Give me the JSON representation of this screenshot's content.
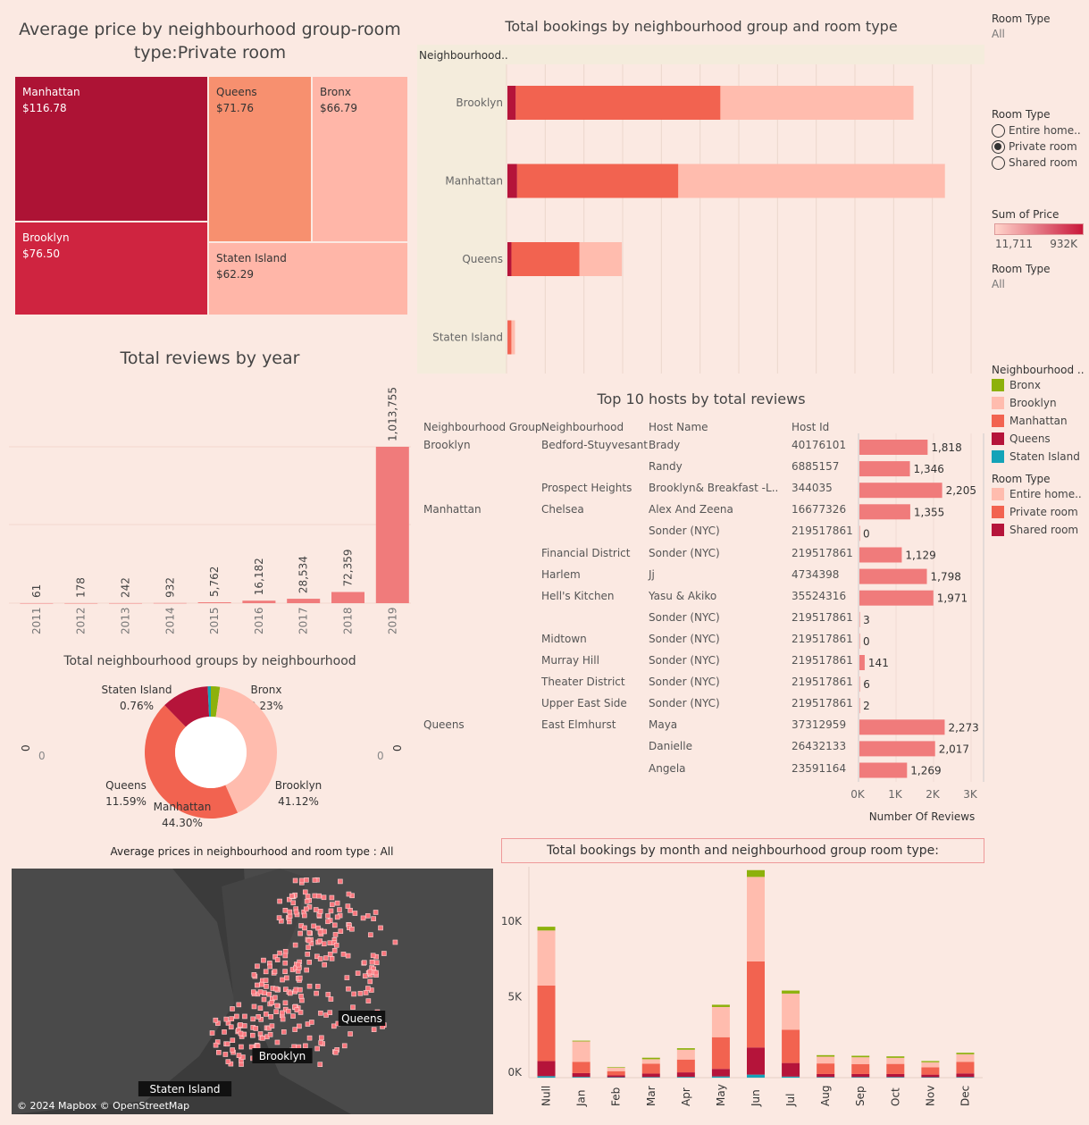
{
  "treemap": {
    "title": "Average price by  neighbourhood group-room type:Private room",
    "cells": [
      {
        "name": "Manhattan",
        "value": "$116.78",
        "color": "#ad1335",
        "text": "#ffffff"
      },
      {
        "name": "Brooklyn",
        "value": "$76.50",
        "color": "#cf2440",
        "text": "#ffffff"
      },
      {
        "name": "Queens",
        "value": "$71.76",
        "color": "#f7906f",
        "text": "#333333"
      },
      {
        "name": "Bronx",
        "value": "$66.79",
        "color": "#ffb6a8",
        "text": "#333333"
      },
      {
        "name": "Staten Island",
        "value": "$62.29",
        "color": "#ffb6a8",
        "text": "#333333"
      }
    ]
  },
  "bookings": {
    "title": "Total bookings by neighbourhood group and room type",
    "header": "Neighbourhood..",
    "rows": [
      {
        "name": "Brooklyn",
        "shared": 413,
        "private": 10132,
        "entire": 9559
      },
      {
        "name": "Manhattan",
        "shared": 480,
        "private": 7982,
        "entire": 13199
      },
      {
        "name": "Queens",
        "shared": 198,
        "private": 3372,
        "entire": 2096
      },
      {
        "name": "Staten Island",
        "shared": 9,
        "private": 188,
        "entire": 176
      }
    ],
    "xmax": 23000,
    "colors": {
      "shared": "#b5143a",
      "private": "#f26350",
      "entire": "#ffbcae"
    }
  },
  "filters": {
    "room_type_label_1": "Room Type",
    "room_type_value_1": "All",
    "room_type_label_2": "Room Type",
    "options": [
      {
        "label": "Entire home..",
        "selected": false
      },
      {
        "label": "Private room",
        "selected": true
      },
      {
        "label": "Shared room",
        "selected": false
      }
    ],
    "sum_price_label": "Sum of Price",
    "sum_price_min": "11,711",
    "sum_price_max": "932K",
    "room_type_label_3": "Room Type",
    "room_type_value_3": "All"
  },
  "legend_ng": {
    "title": "Neighbourhood ..",
    "items": [
      {
        "label": "Bronx",
        "color": "#8db10c"
      },
      {
        "label": "Brooklyn",
        "color": "#ffbcae"
      },
      {
        "label": "Manhattan",
        "color": "#f26350"
      },
      {
        "label": "Queens",
        "color": "#b5143a"
      },
      {
        "label": "Staten Island",
        "color": "#14a3b8"
      }
    ]
  },
  "legend_rt": {
    "title": "Room Type",
    "items": [
      {
        "label": "Entire home..",
        "color": "#ffbcae"
      },
      {
        "label": "Private room",
        "color": "#f26350"
      },
      {
        "label": "Shared room",
        "color": "#b5143a"
      }
    ]
  },
  "reviews_year": {
    "title": "Total reviews by year",
    "years": [
      "2011",
      "2012",
      "2013",
      "2014",
      "2015",
      "2016",
      "2017",
      "2018",
      "2019"
    ],
    "values": [
      61,
      178,
      242,
      932,
      5762,
      16182,
      28534,
      72359,
      1013755
    ],
    "labels": [
      "61",
      "178",
      "242",
      "932",
      "5,762",
      "16,182",
      "28,534",
      "72,359",
      "1,013,755"
    ],
    "ymax": 1013755
  },
  "donut": {
    "title": "Total neighbourhood groups by neighbourhood",
    "slices": [
      {
        "name": "Bronx",
        "pct": 2.23,
        "label": "2.23%",
        "color": "#8db10c"
      },
      {
        "name": "Brooklyn",
        "pct": 41.12,
        "label": "41.12%",
        "color": "#ffbcae"
      },
      {
        "name": "Manhattan",
        "pct": 44.3,
        "label": "44.30%",
        "color": "#f26350"
      },
      {
        "name": "Queens",
        "pct": 11.59,
        "label": "11.59%",
        "color": "#b5143a"
      },
      {
        "name": "Staten Island",
        "pct": 0.76,
        "label": "0.76%",
        "color": "#14a3b8"
      }
    ],
    "axis_zero": "0"
  },
  "hosts": {
    "title": "Top 10 hosts by total reviews",
    "columns": [
      "Neighbourhood Group",
      "Neighbourhood",
      "Host Name",
      "Host Id"
    ],
    "rows": [
      {
        "group": "Brooklyn",
        "hood": "Bedford-Stuyvesant",
        "host": "Brady",
        "id": "40176101",
        "reviews": 1818,
        "label": "1,818"
      },
      {
        "group": "",
        "hood": "",
        "host": "Randy",
        "id": "6885157",
        "reviews": 1346,
        "label": "1,346"
      },
      {
        "group": "",
        "hood": "Prospect Heights",
        "host": "Brooklyn&  Breakfast   -L..",
        "id": "344035",
        "reviews": 2205,
        "label": "2,205"
      },
      {
        "group": "Manhattan",
        "hood": "Chelsea",
        "host": "Alex And Zeena",
        "id": "16677326",
        "reviews": 1355,
        "label": "1,355"
      },
      {
        "group": "",
        "hood": "",
        "host": "Sonder (NYC)",
        "id": "219517861",
        "reviews": 0,
        "label": "0"
      },
      {
        "group": "",
        "hood": "Financial District",
        "host": "Sonder (NYC)",
        "id": "219517861",
        "reviews": 1129,
        "label": "1,129"
      },
      {
        "group": "",
        "hood": "Harlem",
        "host": "Jj",
        "id": "4734398",
        "reviews": 1798,
        "label": "1,798"
      },
      {
        "group": "",
        "hood": "Hell's Kitchen",
        "host": "Yasu & Akiko",
        "id": "35524316",
        "reviews": 1971,
        "label": "1,971"
      },
      {
        "group": "",
        "hood": "",
        "host": "Sonder (NYC)",
        "id": "219517861",
        "reviews": 3,
        "label": "3"
      },
      {
        "group": "",
        "hood": "Midtown",
        "host": "Sonder (NYC)",
        "id": "219517861",
        "reviews": 0,
        "label": "0"
      },
      {
        "group": "",
        "hood": "Murray Hill",
        "host": "Sonder (NYC)",
        "id": "219517861",
        "reviews": 141,
        "label": "141"
      },
      {
        "group": "",
        "hood": "Theater District",
        "host": "Sonder (NYC)",
        "id": "219517861",
        "reviews": 6,
        "label": "6"
      },
      {
        "group": "",
        "hood": "Upper East Side",
        "host": "Sonder (NYC)",
        "id": "219517861",
        "reviews": 2,
        "label": "2"
      },
      {
        "group": "Queens",
        "hood": "East Elmhurst",
        "host": "Maya",
        "id": "37312959",
        "reviews": 2273,
        "label": "2,273"
      },
      {
        "group": "",
        "hood": "",
        "host": "Danielle",
        "id": "26432133",
        "reviews": 2017,
        "label": "2,017"
      },
      {
        "group": "",
        "hood": "",
        "host": "Angela",
        "id": "23591164",
        "reviews": 1269,
        "label": "1,269"
      }
    ],
    "xticks": [
      "0K",
      "1K",
      "2K",
      "3K"
    ],
    "xmax": 3000,
    "xlabel": "Number Of Reviews"
  },
  "map": {
    "title": "Average prices in neighbourhood and room type : All",
    "labels": [
      "Queens",
      "Brooklyn",
      "Staten Island"
    ],
    "attribution": "© 2024 Mapbox © OpenStreetMap"
  },
  "monthly": {
    "title": "Total bookings by month and neighbourhood group room type:",
    "months": [
      "Null",
      "Jan",
      "Feb",
      "Mar",
      "Apr",
      "May",
      "Jun",
      "Jul",
      "Aug",
      "Sep",
      "Oct",
      "Nov",
      "Dec"
    ],
    "yticks": [
      {
        "v": 0,
        "label": "0K"
      },
      {
        "v": 5000,
        "label": "5K"
      },
      {
        "v": 10000,
        "label": "10K"
      }
    ],
    "ymax": 13500,
    "stacks": [
      [
        100,
        1000,
        5000,
        3650,
        250
      ],
      [
        50,
        250,
        750,
        1350,
        50
      ],
      [
        30,
        120,
        280,
        220,
        40
      ],
      [
        40,
        230,
        650,
        300,
        100
      ],
      [
        50,
        300,
        850,
        650,
        100
      ],
      [
        80,
        500,
        2100,
        2000,
        150
      ],
      [
        200,
        1800,
        5700,
        5600,
        450
      ],
      [
        70,
        900,
        2200,
        2400,
        200
      ],
      [
        40,
        200,
        700,
        450,
        100
      ],
      [
        40,
        200,
        660,
        450,
        100
      ],
      [
        40,
        200,
        670,
        400,
        100
      ],
      [
        30,
        170,
        480,
        340,
        80
      ],
      [
        40,
        240,
        770,
        500,
        100
      ]
    ],
    "stack_colors": [
      "#14a3b8",
      "#b5143a",
      "#f26350",
      "#ffbcae",
      "#8db10c"
    ]
  }
}
